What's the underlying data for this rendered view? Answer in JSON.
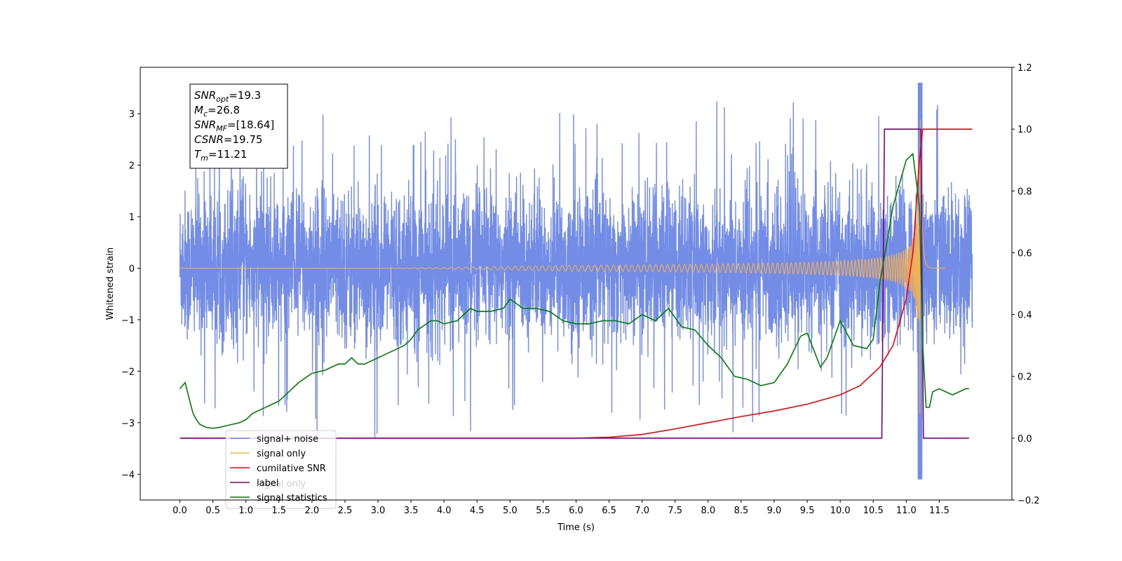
{
  "chart_data": {
    "type": "line",
    "xlabel": "Time (s)",
    "ylabel": "Whitened strain",
    "xlim": [
      -0.6,
      12.6
    ],
    "ylim": [
      -4.5,
      3.9
    ],
    "y2lim": [
      -0.2,
      1.2
    ],
    "x_ticks": [
      "0.0",
      "0.5",
      "1.0",
      "1.5",
      "2.0",
      "2.5",
      "3.0",
      "3.5",
      "4.0",
      "4.5",
      "5.0",
      "5.5",
      "6.0",
      "6.5",
      "7.0",
      "7.5",
      "8.0",
      "8.5",
      "9.0",
      "9.5",
      "10.0",
      "10.5",
      "11.0",
      "11.5"
    ],
    "y_ticks": [
      "−4",
      "−3",
      "−2",
      "−1",
      "0",
      "1",
      "2",
      "3"
    ],
    "y2_ticks": [
      "−0.2",
      "0.0",
      "0.2",
      "0.4",
      "0.6",
      "0.8",
      "1.0",
      "1.2"
    ],
    "grid": false,
    "legend_position": "lower-left",
    "annotation": {
      "snr_opt": "19.3",
      "mc": "26.8",
      "snr_mf": "[18.64]",
      "csnr": "19.75",
      "tm": "11.21"
    },
    "colors": {
      "noise": "#6b87e6",
      "signal": "#ffb347",
      "cumulative": "#ff0000",
      "label": "#800080",
      "statistics": "#008000"
    },
    "series": [
      {
        "name": "signal+ noise",
        "axis": "left",
        "time_range": [
          0.0,
          12.0
        ],
        "approx_band": [
          -1.6,
          1.7
        ],
        "approx_extremes": [
          -4.1,
          3.6
        ]
      },
      {
        "name": "signal only",
        "axis": "left",
        "note": "chirp, peak near t=11.21",
        "approx_peak_amplitude": 3.2
      },
      {
        "name": "cumilative SNR",
        "axis": "right",
        "x": [
          0,
          6.0,
          6.5,
          7.0,
          7.5,
          8.0,
          8.5,
          9.0,
          9.5,
          10.0,
          10.3,
          10.6,
          10.8,
          11.0,
          11.1,
          11.2,
          11.25,
          12.0
        ],
        "y": [
          0,
          0.0,
          0.003,
          0.012,
          0.03,
          0.05,
          0.07,
          0.088,
          0.11,
          0.14,
          0.17,
          0.23,
          0.3,
          0.45,
          0.6,
          0.9,
          1.0,
          1.0
        ]
      },
      {
        "name": "label",
        "axis": "right",
        "x": [
          0,
          10.63,
          10.67,
          11.22,
          11.26,
          11.95
        ],
        "y": [
          0,
          0,
          1,
          1,
          0,
          0
        ]
      },
      {
        "name": "signal statistics",
        "axis": "right",
        "x": [
          0,
          0.08,
          0.15,
          0.2,
          0.25,
          0.3,
          0.4,
          0.5,
          0.6,
          0.7,
          0.8,
          0.9,
          1.0,
          1.1,
          1.2,
          1.3,
          1.4,
          1.5,
          1.6,
          1.7,
          1.8,
          1.9,
          2.0,
          2.2,
          2.4,
          2.5,
          2.6,
          2.7,
          2.8,
          3.0,
          3.2,
          3.4,
          3.5,
          3.6,
          3.8,
          3.9,
          4.0,
          4.2,
          4.4,
          4.5,
          4.7,
          4.9,
          5.0,
          5.2,
          5.4,
          5.6,
          5.8,
          6.0,
          6.2,
          6.4,
          6.6,
          6.8,
          7.0,
          7.2,
          7.4,
          7.6,
          7.8,
          8.0,
          8.2,
          8.4,
          8.6,
          8.8,
          9.0,
          9.2,
          9.4,
          9.5,
          9.7,
          9.8,
          10.0,
          10.2,
          10.4,
          10.5,
          10.6,
          10.8,
          11.0,
          11.1,
          11.2,
          11.25,
          11.3,
          11.35,
          11.4,
          11.5,
          11.6,
          11.7,
          11.8,
          11.9,
          11.95
        ],
        "y": [
          0.16,
          0.18,
          0.12,
          0.08,
          0.06,
          0.045,
          0.035,
          0.032,
          0.035,
          0.04,
          0.045,
          0.05,
          0.06,
          0.08,
          0.09,
          0.1,
          0.11,
          0.12,
          0.14,
          0.16,
          0.18,
          0.195,
          0.21,
          0.22,
          0.24,
          0.24,
          0.26,
          0.24,
          0.24,
          0.26,
          0.28,
          0.3,
          0.32,
          0.35,
          0.38,
          0.38,
          0.37,
          0.38,
          0.42,
          0.41,
          0.41,
          0.42,
          0.45,
          0.42,
          0.42,
          0.41,
          0.38,
          0.37,
          0.37,
          0.38,
          0.38,
          0.37,
          0.4,
          0.38,
          0.42,
          0.36,
          0.35,
          0.3,
          0.26,
          0.2,
          0.19,
          0.17,
          0.18,
          0.24,
          0.33,
          0.34,
          0.23,
          0.26,
          0.38,
          0.3,
          0.29,
          0.32,
          0.5,
          0.75,
          0.9,
          0.92,
          0.75,
          0.3,
          0.1,
          0.1,
          0.15,
          0.16,
          0.15,
          0.14,
          0.15,
          0.16,
          0.16
        ]
      }
    ]
  },
  "legend": {
    "items": [
      {
        "label": "signal+ noise"
      },
      {
        "label": "signal only"
      },
      {
        "label": "cumilative SNR"
      },
      {
        "label": "label"
      },
      {
        "label": "signal statistics"
      }
    ],
    "behind_text": [
      "signal only",
      "signal statistics"
    ]
  }
}
